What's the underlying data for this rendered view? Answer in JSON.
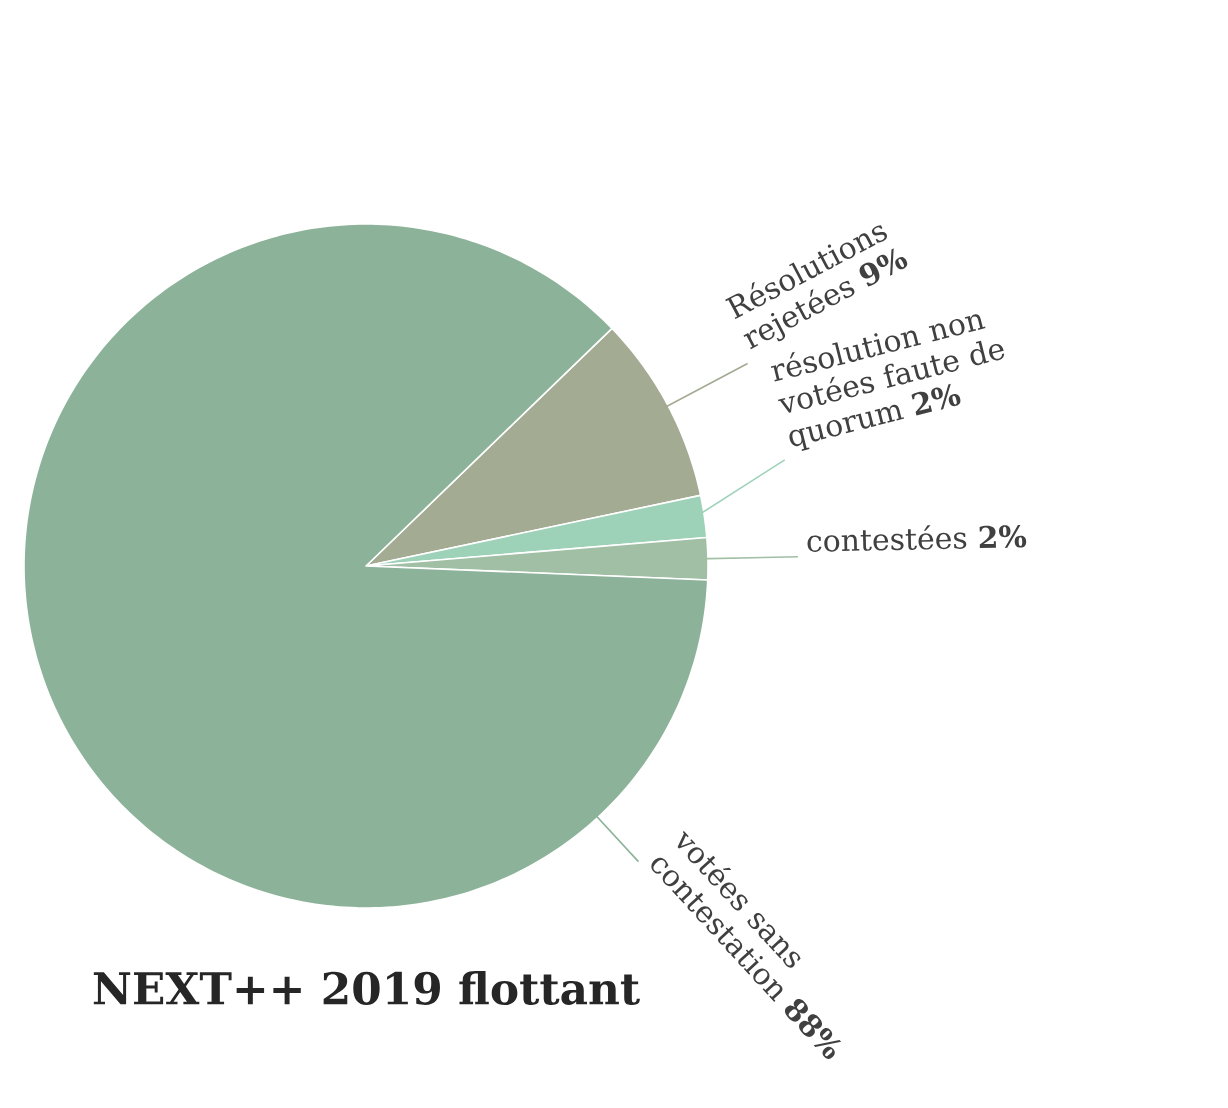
{
  "chart_data": {
    "type": "pie",
    "title": "NEXT++ 2019 flottant",
    "categories": [
      "Résolutions rejetées",
      "résolution non votées faute de quorum",
      "contestées",
      "votées sans contestation"
    ],
    "values": [
      9,
      2,
      2,
      88
    ],
    "value_labels": [
      "9%",
      "2%",
      "2%",
      "88%"
    ],
    "colors": [
      "#a3ab93",
      "#9dd1b8",
      "#a0bfa5",
      "#8cb399"
    ]
  }
}
